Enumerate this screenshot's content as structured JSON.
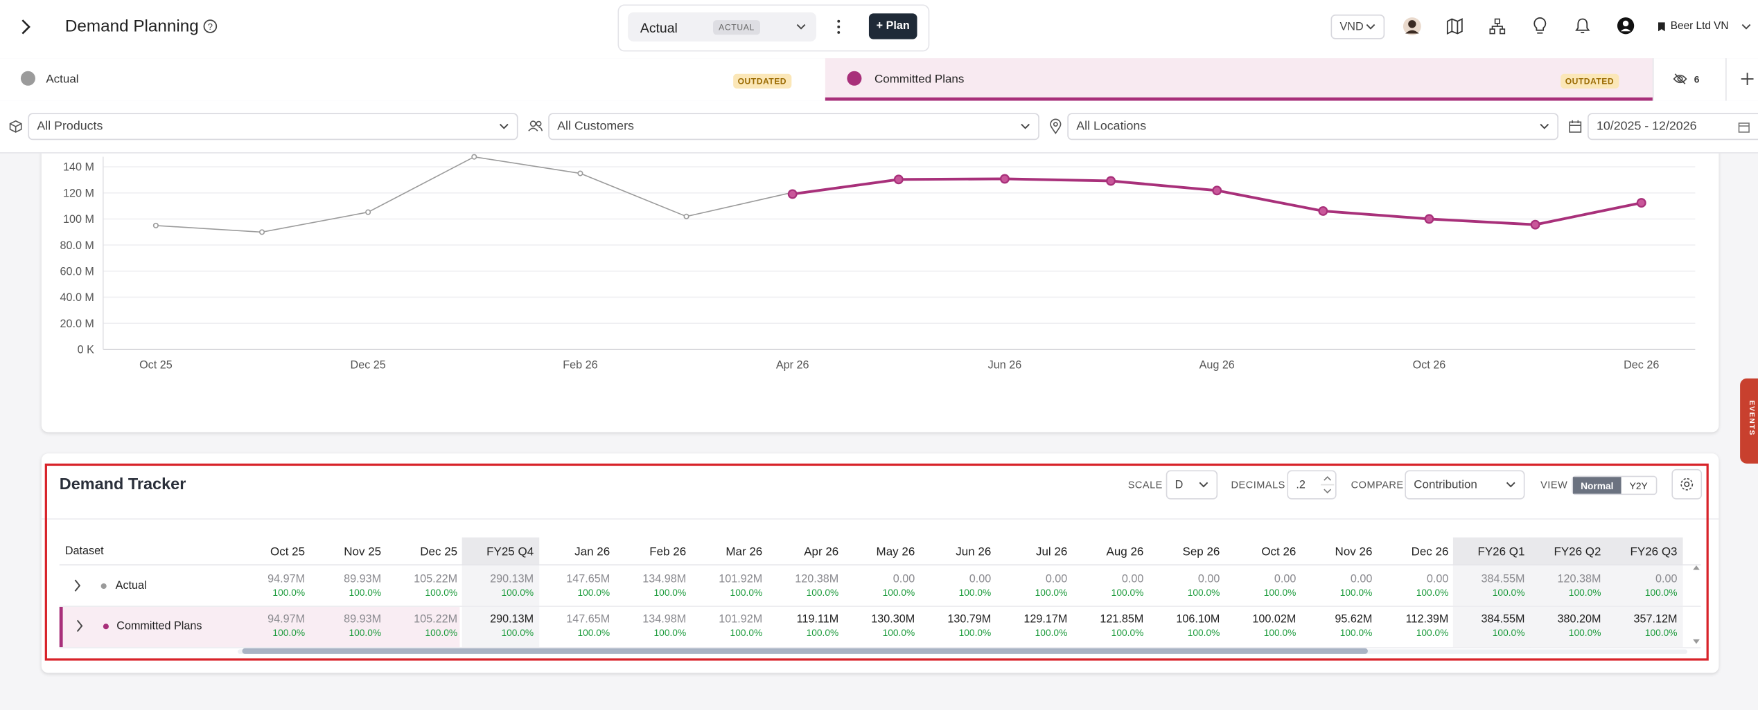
{
  "header": {
    "title": "Demand Planning",
    "scenario": "Actual",
    "scenario_badge": "ACTUAL",
    "plan_button": "+ Plan",
    "currency": "VND",
    "company": "Beer Ltd VN"
  },
  "tabs": [
    {
      "badge": "OUTDATED"
    },
    {
      "badge": "OUTDATED"
    }
  ],
  "hidden_count": 6,
  "filters": {
    "products": "All Products",
    "customers": "All Customers",
    "locations": "All Locations",
    "date_range": "10/2025 - 12/2026"
  },
  "chart": {
    "type": "line",
    "categories": [
      "Oct 25",
      null,
      "Dec 25",
      null,
      "Feb 26",
      null,
      "Apr 26",
      null,
      "Jun 26",
      null,
      "Aug 26",
      null,
      "Oct 26",
      null,
      "Dec 26"
    ],
    "series": [
      {
        "name": "Actual",
        "color": "#9b9b9b",
        "values": [
          94.97,
          89.93,
          105.22,
          147.65,
          134.98,
          101.92,
          120.38,
          null,
          null,
          null,
          null,
          null,
          null,
          null,
          null
        ]
      },
      {
        "name": "Committed Plans",
        "color": "#a8307a",
        "values": [
          null,
          null,
          null,
          null,
          null,
          null,
          119.11,
          130.3,
          130.79,
          129.17,
          121.85,
          106.1,
          100.02,
          95.62,
          112.39
        ]
      }
    ],
    "ylim": [
      0,
      140
    ],
    "yticks": [
      {
        "value": 0,
        "label": "0 K"
      },
      {
        "value": 20,
        "label": "20.0 M"
      },
      {
        "value": 40,
        "label": "40.0 M"
      },
      {
        "value": 60,
        "label": "60.0 M"
      },
      {
        "value": 80,
        "label": "80.0 M"
      },
      {
        "value": 100,
        "label": "100 M"
      },
      {
        "value": 120,
        "label": "120 M"
      },
      {
        "value": 140,
        "label": "140 M"
      }
    ],
    "grid": true
  },
  "events_tab": "EVENTS",
  "tracker": {
    "title": "Demand Tracker",
    "scale_label": "SCALE",
    "scale": "D",
    "decimals_label": "DECIMALS",
    "decimals": ".2",
    "compare_label": "COMPARE",
    "compare": "Contribution",
    "view_label": "VIEW",
    "view_options": [
      "Normal",
      "Y2Y"
    ]
  },
  "table": {
    "header": "Dataset",
    "columns": [
      "Oct 25",
      "Nov 25",
      "Dec 25",
      "FY25 Q4",
      "Jan 26",
      "Feb 26",
      "Mar 26",
      "Apr 26",
      "May 26",
      "Jun 26",
      "Jul 26",
      "Aug 26",
      "Sep 26",
      "Oct 26",
      "Nov 26",
      "Dec 26",
      "FY26 Q1",
      "FY26 Q2",
      "FY26 Q3"
    ],
    "rows": [
      {
        "name": "Actual",
        "cells": [
          {
            "value": "94.97M",
            "share": "100.0%"
          },
          {
            "value": "89.93M",
            "share": "100.0%"
          },
          {
            "value": "105.22M",
            "share": "100.0%"
          },
          {
            "value": "290.13M",
            "share": "100.0%"
          },
          {
            "value": "147.65M",
            "share": "100.0%"
          },
          {
            "value": "134.98M",
            "share": "100.0%"
          },
          {
            "value": "101.92M",
            "share": "100.0%"
          },
          {
            "value": "120.38M",
            "share": "100.0%"
          },
          {
            "value": "0.00",
            "share": "100.0%"
          },
          {
            "value": "0.00",
            "share": "100.0%"
          },
          {
            "value": "0.00",
            "share": "100.0%"
          },
          {
            "value": "0.00",
            "share": "100.0%"
          },
          {
            "value": "0.00",
            "share": "100.0%"
          },
          {
            "value": "0.00",
            "share": "100.0%"
          },
          {
            "value": "0.00",
            "share": "100.0%"
          },
          {
            "value": "0.00",
            "share": "100.0%"
          },
          {
            "value": "384.55M",
            "share": "100.0%"
          },
          {
            "value": "120.38M",
            "share": "100.0%"
          },
          {
            "value": "0.00",
            "share": "100.0%"
          }
        ]
      },
      {
        "name": "Committed Plans",
        "cells": [
          {
            "value": "94.97M",
            "share": "100.0%"
          },
          {
            "value": "89.93M",
            "share": "100.0%"
          },
          {
            "value": "105.22M",
            "share": "100.0%"
          },
          {
            "value": "290.13M",
            "share": "100.0%"
          },
          {
            "value": "147.65M",
            "share": "100.0%"
          },
          {
            "value": "134.98M",
            "share": "100.0%"
          },
          {
            "value": "101.92M",
            "share": "100.0%"
          },
          {
            "value": "119.11M",
            "share": "100.0%"
          },
          {
            "value": "130.30M",
            "share": "100.0%"
          },
          {
            "value": "130.79M",
            "share": "100.0%"
          },
          {
            "value": "129.17M",
            "share": "100.0%"
          },
          {
            "value": "121.85M",
            "share": "100.0%"
          },
          {
            "value": "106.10M",
            "share": "100.0%"
          },
          {
            "value": "100.02M",
            "share": "100.0%"
          },
          {
            "value": "95.62M",
            "share": "100.0%"
          },
          {
            "value": "112.39M",
            "share": "100.0%"
          },
          {
            "value": "384.55M",
            "share": "100.0%"
          },
          {
            "value": "380.20M",
            "share": "100.0%"
          },
          {
            "value": "357.12M",
            "share": "100.0%"
          }
        ]
      }
    ]
  }
}
